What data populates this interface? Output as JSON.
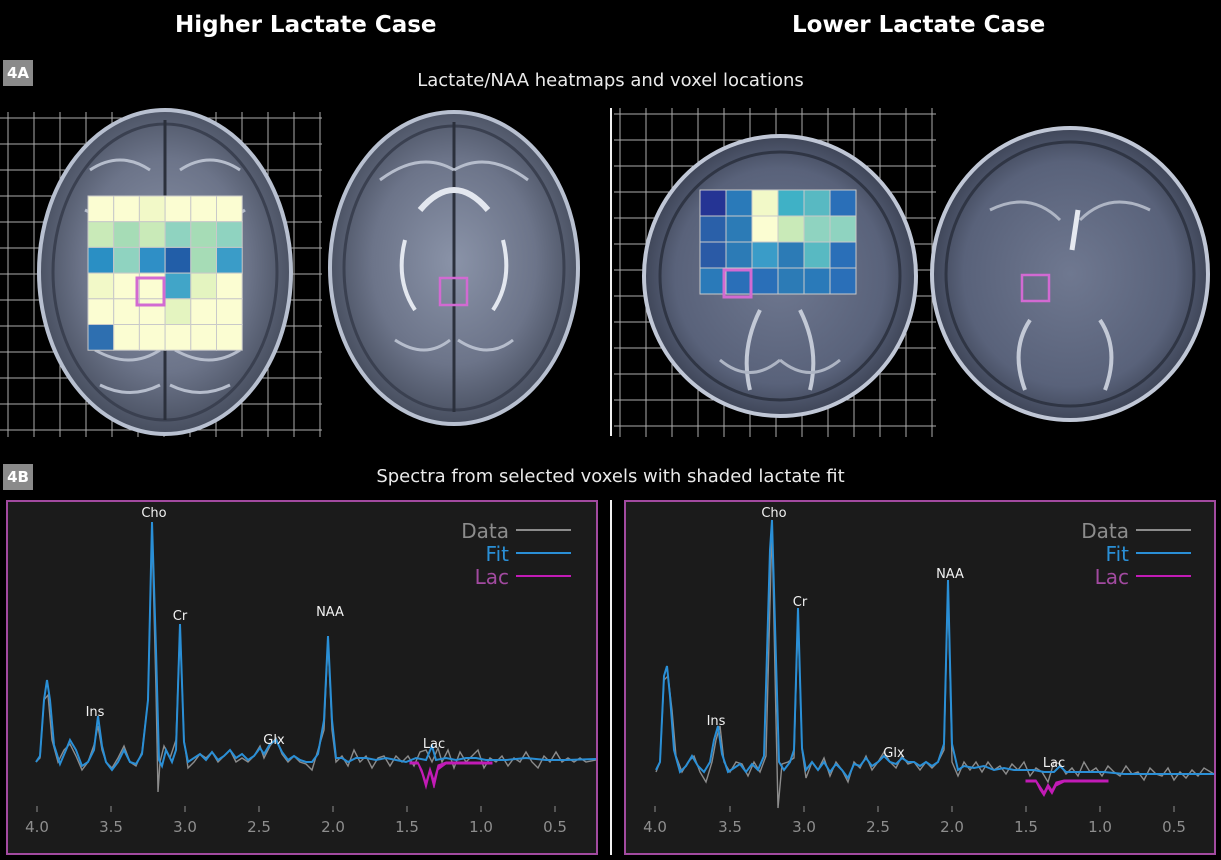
{
  "titles": {
    "left_case": "Higher Lactate Case",
    "right_case": "Lower Lactate Case"
  },
  "section_a": {
    "badge": "4A",
    "title": "Lactate/NAA heatmaps and voxel locations"
  },
  "section_b": {
    "badge": "4B",
    "title": "Spectra from selected voxels with shaded lactate fit"
  },
  "colors": {
    "data_line": "#8c8c8c",
    "fit_line": "#2a8fd6",
    "lac_fill": "#c21bb6",
    "panel_border": "#a24aa0",
    "voxel_box": "#d26ad2",
    "grid_line": "#d8d8d8"
  },
  "heatmap_left": {
    "rows": [
      [
        "#fbfdd2",
        "#fbfdd2",
        "#f2f9c8",
        "#fbfdd2",
        "#fbfdd2",
        "#fbfdd2"
      ],
      [
        "#c9eab8",
        "#a6dcb6",
        "#c9eab8",
        "#8fd3c0",
        "#a6dcb6",
        "#8fd3c0"
      ],
      [
        "#2a8fc4",
        "#8fd3c0",
        "#2f8fc6",
        "#225ea8",
        "#a6dcb6",
        "#3a9cc8"
      ],
      [
        "#f2f9c8",
        "#fbfdd2",
        "#fbfdd2",
        "#41a5c8",
        "#e4f4c0",
        "#fbfdd2"
      ],
      [
        "#fbfdd2",
        "#fbfdd2",
        "#fbfdd2",
        "#e4f4c0",
        "#fbfdd2",
        "#fbfdd2"
      ],
      [
        "#2e6fb0",
        "#fbfdd2",
        "#fbfdd2",
        "#fbfdd2",
        "#fbfdd2",
        "#fbfdd2"
      ]
    ]
  },
  "heatmap_right": {
    "rows": [
      [
        "#253494",
        "#2a7ab9",
        "#f2f9c8",
        "#3fb1c6",
        "#58b9c2",
        "#2a6fb8"
      ],
      [
        "#2a60a9",
        "#2c7bb6",
        "#fbfdd2",
        "#c9eab8",
        "#8fd3c0",
        "#8fd3c0"
      ],
      [
        "#2a5aa6",
        "#2c7bb6",
        "#3a9cc8",
        "#2c7bb6",
        "#58b9c2",
        "#2a6fb8"
      ],
      [
        "#2a7ab9",
        "#2a6fb8",
        "#2a6fb8",
        "#2c7bb6",
        "#2a7ab9",
        "#2a6fb8"
      ]
    ]
  },
  "legend": {
    "items": [
      {
        "label": "Data",
        "color": "#8c8c8c"
      },
      {
        "label": "Fit",
        "color": "#2a8fd6"
      },
      {
        "label": "Lac",
        "color": "#c21bb6"
      }
    ]
  },
  "x_axis": {
    "ticks": [
      "4.0",
      "3.5",
      "3.0",
      "2.5",
      "2.0",
      "1.5",
      "1.0",
      "0.5"
    ]
  },
  "spectrum_left": {
    "peaks": {
      "ins": "Ins",
      "cho": "Cho",
      "cr": "Cr",
      "glx": "Glx",
      "naa": "NAA",
      "lac": "Lac"
    }
  },
  "spectrum_right": {
    "peaks": {
      "ins": "Ins",
      "cho": "Cho",
      "cr": "Cr",
      "glx": "Glx",
      "naa": "NAA",
      "lac": "Lac"
    }
  }
}
